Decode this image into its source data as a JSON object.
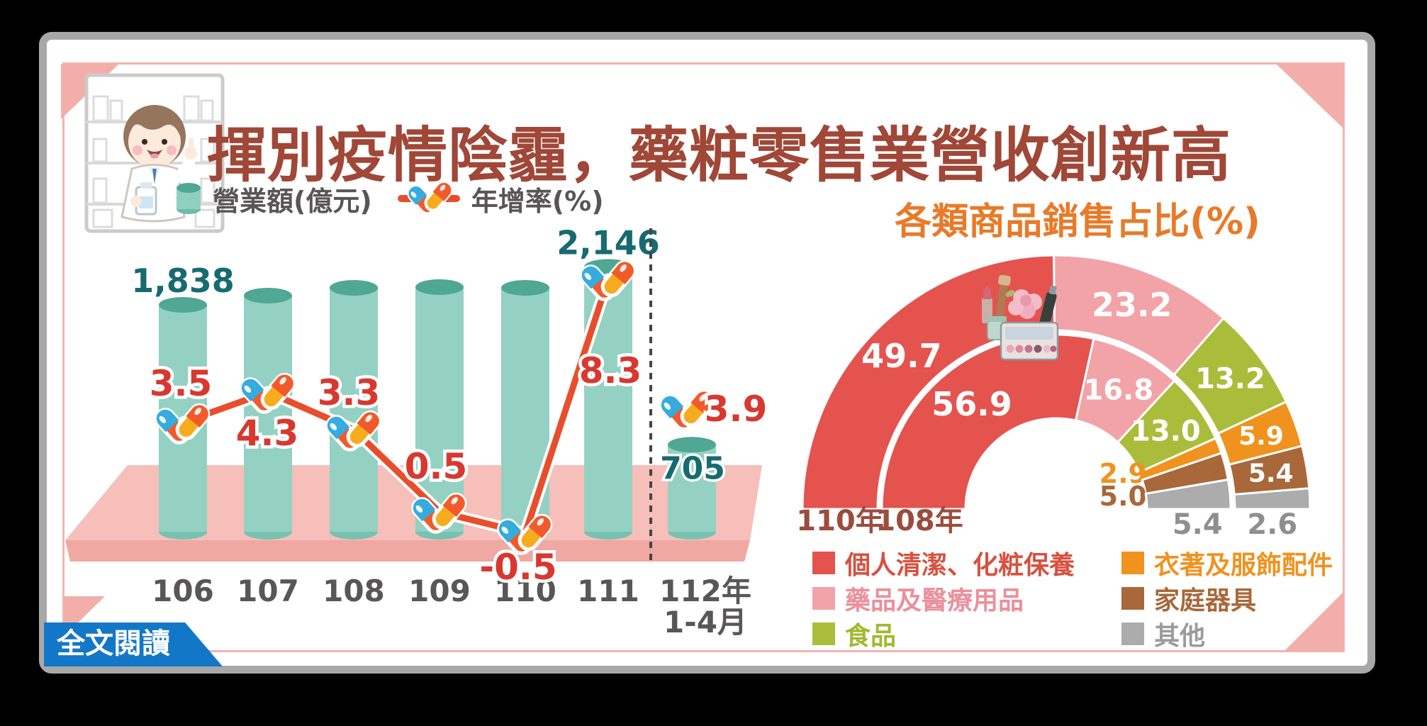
{
  "header": {
    "title": "揮別疫情陰霾，藥粧零售業營收創新高"
  },
  "footer": {
    "read_more_label": "全文閱讀"
  },
  "bar_legend": {
    "revenue_label": "營業額(億元)",
    "growth_label": "年增率(%)"
  },
  "chart_data": [
    {
      "type": "bar",
      "title": "",
      "categories": [
        "106",
        "107",
        "108",
        "109",
        "110",
        "111",
        "112年|1-4月"
      ],
      "series": [
        {
          "name": "營業額(億元)",
          "type": "bar",
          "values": [
            1838,
            1913,
            1976,
            1982,
            1976,
            2146,
            705
          ],
          "value_labels": [
            "1,838",
            "",
            "",
            "",
            "",
            "2,146",
            "705"
          ],
          "estimated_values": [
            false,
            true,
            true,
            true,
            true,
            false,
            false
          ]
        },
        {
          "name": "年增率(%)",
          "type": "line",
          "values": [
            3.5,
            4.3,
            3.3,
            0.5,
            -0.5,
            8.3,
            3.9
          ],
          "value_labels": [
            "3.5",
            "4.3",
            "3.3",
            "0.5",
            "-0.5",
            "8.3",
            "3.9"
          ],
          "last_point_disconnected": true
        }
      ],
      "colors": {
        "bar": "#94D1C3",
        "bar_top": "#4FA794",
        "bar_bottom": "#77C2B0",
        "line": "#E84E2C",
        "line_label": "#D8382F",
        "bar_label": "#176B70",
        "axis_label": "#585656",
        "platform": "#F6BFBA",
        "platform_front": "#F0A8A2"
      }
    },
    {
      "type": "donut-half",
      "title": "各類商品銷售占比(%)",
      "title_color": "#E87A28",
      "categories": [
        "個人清潔、化粧保養",
        "藥品及醫療用品",
        "食品",
        "衣著及服飾配件",
        "家庭器具",
        "其他"
      ],
      "colors": [
        "#E4534E",
        "#F2A3A8",
        "#A9BD3B",
        "#F0921E",
        "#A8683A",
        "#ACACAC"
      ],
      "legend_text_colors": [
        "#D8503F",
        "#EC8F9C",
        "#A3B832",
        "#F0921E",
        "#A8683A",
        "#9B9B9B"
      ],
      "rings": [
        {
          "name": "110年",
          "position": "outer",
          "values": [
            49.7,
            23.2,
            13.2,
            5.9,
            5.4,
            2.6
          ]
        },
        {
          "name": "108年",
          "position": "inner",
          "values": [
            56.9,
            16.8,
            13.0,
            2.9,
            5.0,
            5.4
          ]
        }
      ],
      "ring_label_color": "#9C4C3C",
      "legend_position": "bottom"
    }
  ]
}
